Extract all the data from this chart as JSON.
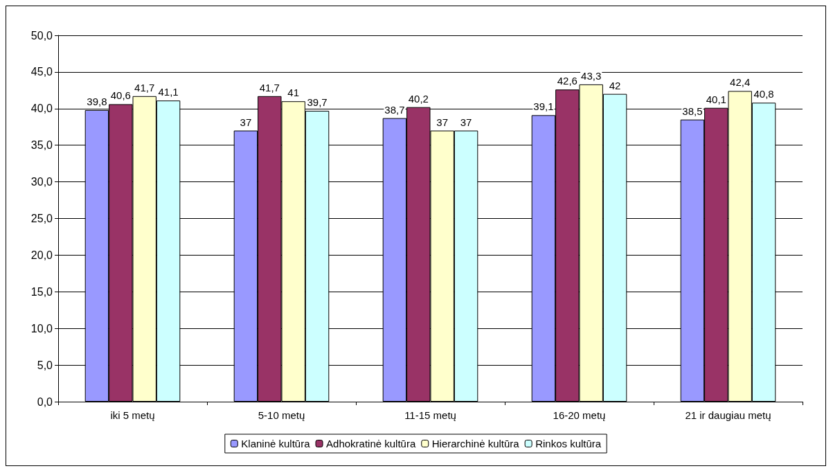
{
  "chart_data": {
    "type": "bar",
    "categories": [
      "iki 5 metų",
      "5-10 metų",
      "11-15 metų",
      "16-20 metų",
      "21 ir daugiau metų"
    ],
    "series": [
      {
        "name": "Klaninė kultūra",
        "color": "#9999ff",
        "values": [
          39.8,
          37,
          38.7,
          39.1,
          38.5
        ],
        "value_labels": [
          "39,8",
          "37",
          "38,7",
          "39,1",
          "38,5"
        ]
      },
      {
        "name": "Adhokratinė kultūra",
        "color": "#993366",
        "values": [
          40.6,
          41.7,
          40.2,
          42.6,
          40.1
        ],
        "value_labels": [
          "40,6",
          "41,7",
          "40,2",
          "42,6",
          "40,1"
        ]
      },
      {
        "name": "Hierarchinė kultūra",
        "color": "#ffffcc",
        "values": [
          41.7,
          41,
          37,
          43.3,
          42.4
        ],
        "value_labels": [
          "41,7",
          "41",
          "37",
          "43,3",
          "42,4"
        ]
      },
      {
        "name": "Rinkos kultūra",
        "color": "#ccffff",
        "values": [
          41.1,
          39.7,
          37,
          42,
          40.8
        ],
        "value_labels": [
          "41,1",
          "39,7",
          "37",
          "42",
          "40,8"
        ]
      }
    ],
    "ylim": [
      0,
      50
    ],
    "yticks": [
      {
        "value": 0,
        "label": "0,0"
      },
      {
        "value": 5,
        "label": "5,0"
      },
      {
        "value": 10,
        "label": "10,0"
      },
      {
        "value": 15,
        "label": "15,0"
      },
      {
        "value": 20,
        "label": "20,0"
      },
      {
        "value": 25,
        "label": "25,0"
      },
      {
        "value": 30,
        "label": "30,0"
      },
      {
        "value": 35,
        "label": "35,0"
      },
      {
        "value": 40,
        "label": "40,0"
      },
      {
        "value": 45,
        "label": "45,0"
      },
      {
        "value": 50,
        "label": "50,0"
      }
    ],
    "grid": "y",
    "legend": "bottom"
  }
}
